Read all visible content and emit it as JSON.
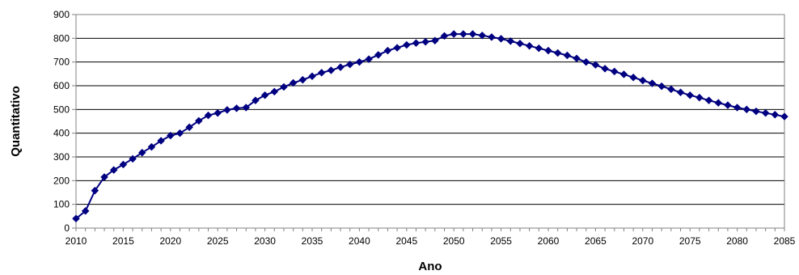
{
  "chart_data": {
    "type": "line",
    "title": "",
    "xlabel": "Ano",
    "ylabel": "Quantitativo",
    "xlim": [
      2010,
      2085
    ],
    "ylim": [
      0,
      900
    ],
    "x_ticks": [
      2010,
      2015,
      2020,
      2025,
      2030,
      2035,
      2040,
      2045,
      2050,
      2055,
      2060,
      2065,
      2070,
      2075,
      2080,
      2085
    ],
    "y_ticks": [
      0,
      100,
      200,
      300,
      400,
      500,
      600,
      700,
      800,
      900
    ],
    "grid": "horizontal",
    "legend": "none",
    "series": [
      {
        "color": "#000080",
        "marker": "diamond",
        "x": [
          2010,
          2011,
          2012,
          2013,
          2014,
          2015,
          2016,
          2017,
          2018,
          2019,
          2020,
          2021,
          2022,
          2023,
          2024,
          2025,
          2026,
          2027,
          2028,
          2029,
          2030,
          2031,
          2032,
          2033,
          2034,
          2035,
          2036,
          2037,
          2038,
          2039,
          2040,
          2041,
          2042,
          2043,
          2044,
          2045,
          2046,
          2047,
          2048,
          2049,
          2050,
          2051,
          2052,
          2053,
          2054,
          2055,
          2056,
          2057,
          2058,
          2059,
          2060,
          2061,
          2062,
          2063,
          2064,
          2065,
          2066,
          2067,
          2068,
          2069,
          2070,
          2071,
          2072,
          2073,
          2074,
          2075,
          2076,
          2077,
          2078,
          2079,
          2080,
          2081,
          2082,
          2083,
          2084,
          2085
        ],
        "values": [
          40,
          72,
          158,
          215,
          245,
          268,
          292,
          318,
          342,
          368,
          390,
          400,
          425,
          452,
          475,
          485,
          498,
          505,
          508,
          538,
          560,
          575,
          595,
          612,
          625,
          640,
          655,
          665,
          678,
          690,
          700,
          712,
          730,
          748,
          760,
          772,
          780,
          785,
          790,
          810,
          818,
          818,
          818,
          812,
          805,
          798,
          788,
          778,
          768,
          758,
          748,
          738,
          728,
          715,
          700,
          688,
          672,
          660,
          648,
          635,
          622,
          610,
          598,
          585,
          572,
          560,
          550,
          538,
          528,
          518,
          508,
          500,
          492,
          485,
          478,
          470
        ]
      }
    ]
  }
}
